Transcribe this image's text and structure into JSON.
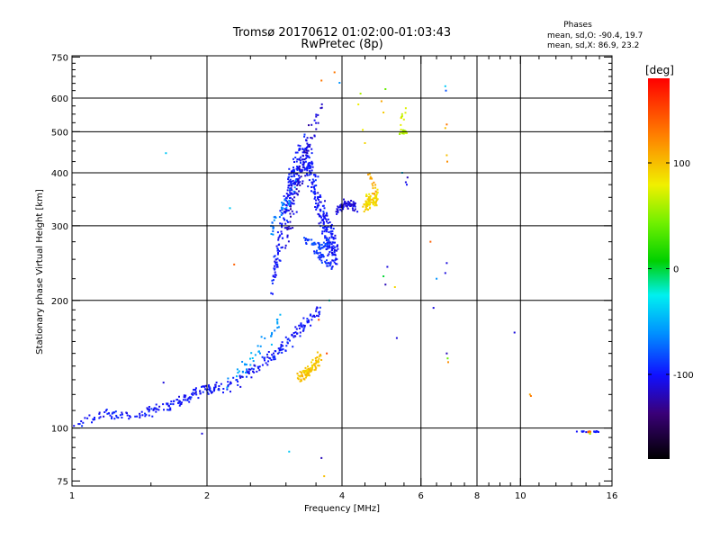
{
  "chart_data": {
    "type": "scatter",
    "title": "Tromsø 20170612 01:02:00-01:03:43",
    "subtitle": "RwPretec (8p)",
    "xlabel": "Frequency [MHz]",
    "ylabel": "Stationary phase Virtual Height [km]",
    "xscale": "log",
    "yscale": "log",
    "xlim": [
      1,
      16
    ],
    "ylim": [
      73,
      755
    ],
    "x_ticks": [
      1,
      2,
      4,
      6,
      8,
      10,
      16
    ],
    "x_tick_labels": [
      "1",
      "2",
      "4",
      "6",
      "8",
      "10",
      "16"
    ],
    "y_ticks": [
      75,
      100,
      200,
      300,
      400,
      500,
      600,
      750
    ],
    "y_tick_labels": [
      "75",
      "100",
      "200",
      "300",
      "400",
      "500",
      "600",
      "750"
    ],
    "x_grid": [
      2,
      4,
      6,
      8,
      10
    ],
    "y_grid": [
      100,
      200,
      300,
      400,
      500,
      600
    ],
    "grid": true,
    "phases_box": {
      "title": "Phases",
      "line1": "mean, sd,O: -90.4, 19.7",
      "line2": "mean, sd,X:  86.9, 23.2"
    },
    "colorbar": {
      "label": "[deg]",
      "range": [
        -180,
        180
      ],
      "ticks": [
        100,
        0,
        -100
      ],
      "tick_labels": [
        "100",
        "0",
        "-100"
      ]
    },
    "traces": [
      {
        "x": [
          1.0,
          1.1,
          1.2,
          1.3,
          1.4,
          1.5,
          1.6,
          1.7,
          1.8,
          1.9,
          2.0,
          2.1
        ],
        "y": [
          103,
          105,
          108,
          107,
          106,
          110,
          112,
          114,
          117,
          122,
          123,
          124
        ],
        "phase": -100,
        "spread": 0.04,
        "n": 170
      },
      {
        "x": [
          2.1,
          2.3,
          2.5,
          2.7,
          2.9,
          3.1,
          3.3,
          3.6
        ],
        "y": [
          124,
          128,
          135,
          143,
          152,
          165,
          175,
          195
        ],
        "phase": -100,
        "spread": 0.06,
        "n": 150
      },
      {
        "x": [
          2.2,
          2.45,
          2.7,
          2.9
        ],
        "y": [
          128,
          142,
          160,
          178
        ],
        "phase": -55,
        "spread": 0.07,
        "n": 40
      },
      {
        "x": [
          2.8,
          2.9,
          3.0,
          3.1,
          3.2,
          3.3,
          3.4,
          3.5,
          3.6,
          3.7,
          3.8,
          3.9
        ],
        "y": [
          225,
          270,
          330,
          380,
          420,
          440,
          410,
          360,
          320,
          290,
          270,
          260
        ],
        "phase": -100,
        "spread": 0.16,
        "n": 440
      },
      {
        "x": [
          3.0,
          3.2,
          3.4,
          3.6
        ],
        "y": [
          280,
          380,
          490,
          560
        ],
        "phase": -115,
        "spread": 0.12,
        "n": 80
      },
      {
        "x": [
          3.3,
          3.45,
          3.6,
          3.75
        ],
        "y": [
          278,
          272,
          268,
          276
        ],
        "phase": -85,
        "spread": 0.03,
        "n": 50
      },
      {
        "x": [
          3.5,
          3.6,
          3.7,
          3.8
        ],
        "y": [
          260,
          252,
          245,
          240
        ],
        "phase": -90,
        "spread": 0.04,
        "n": 35
      },
      {
        "x": [
          2.75,
          2.95,
          3.15
        ],
        "y": [
          290,
          330,
          370
        ],
        "phase": -65,
        "spread": 0.08,
        "n": 35
      },
      {
        "x": [
          3.9,
          4.0,
          4.1,
          4.2,
          4.3
        ],
        "y": [
          325,
          335,
          340,
          338,
          330
        ],
        "phase": -110,
        "spread": 0.04,
        "n": 70
      },
      {
        "x": [
          3.2,
          3.3,
          3.4,
          3.5,
          3.6
        ],
        "y": [
          132,
          133,
          138,
          142,
          147
        ],
        "phase": 98,
        "spread": 0.05,
        "n": 90
      },
      {
        "x": [
          4.5,
          4.6,
          4.7,
          4.8
        ],
        "y": [
          335,
          340,
          345,
          350
        ],
        "phase": 90,
        "spread": 0.06,
        "n": 90
      },
      {
        "x": [
          4.6,
          4.75
        ],
        "y": [
          390,
          360
        ],
        "phase": 110,
        "spread": 0.07,
        "n": 15
      },
      {
        "x": [
          5.4,
          5.5,
          5.55
        ],
        "y": [
          495,
          498,
          500
        ],
        "phase": 60,
        "spread": 0.015,
        "n": 28
      },
      {
        "x": [
          5.4,
          5.5
        ],
        "y": [
          530,
          550
        ],
        "phase": 75,
        "spread": 0.05,
        "n": 10
      },
      {
        "x": [
          13.4,
          14.0,
          14.6,
          15.0
        ],
        "y": [
          98,
          98,
          98,
          98
        ],
        "phase": -100,
        "spread": 0.006,
        "n": 18
      },
      {
        "x": [
          14.2,
          14.5
        ],
        "y": [
          98,
          98
        ],
        "phase": 140,
        "spread": 0.005,
        "n": 6
      },
      {
        "x": [
          14.3
        ],
        "y": [
          97
        ],
        "phase": 60,
        "spread": 0.005,
        "n": 3
      }
    ],
    "points": [
      {
        "x": 1.6,
        "y": 128,
        "phase": -110
      },
      {
        "x": 1.62,
        "y": 445,
        "phase": -40
      },
      {
        "x": 1.95,
        "y": 97,
        "phase": -110
      },
      {
        "x": 2.25,
        "y": 330,
        "phase": -40
      },
      {
        "x": 2.3,
        "y": 243,
        "phase": 140
      },
      {
        "x": 3.05,
        "y": 88,
        "phase": -40
      },
      {
        "x": 3.6,
        "y": 85,
        "phase": -120
      },
      {
        "x": 3.65,
        "y": 77,
        "phase": 100
      },
      {
        "x": 3.55,
        "y": 180,
        "phase": 150
      },
      {
        "x": 3.7,
        "y": 150,
        "phase": 150
      },
      {
        "x": 3.75,
        "y": 200,
        "phase": -20
      },
      {
        "x": 3.95,
        "y": 652,
        "phase": -60
      },
      {
        "x": 3.85,
        "y": 690,
        "phase": 130
      },
      {
        "x": 3.6,
        "y": 660,
        "phase": 130
      },
      {
        "x": 4.35,
        "y": 580,
        "phase": 80
      },
      {
        "x": 4.4,
        "y": 615,
        "phase": 60
      },
      {
        "x": 4.45,
        "y": 505,
        "phase": 80
      },
      {
        "x": 4.5,
        "y": 470,
        "phase": 90
      },
      {
        "x": 4.9,
        "y": 590,
        "phase": 110
      },
      {
        "x": 5.0,
        "y": 630,
        "phase": 40
      },
      {
        "x": 4.95,
        "y": 555,
        "phase": 95
      },
      {
        "x": 5.05,
        "y": 240,
        "phase": -110
      },
      {
        "x": 5.0,
        "y": 218,
        "phase": -120
      },
      {
        "x": 4.95,
        "y": 228,
        "phase": 0
      },
      {
        "x": 5.25,
        "y": 215,
        "phase": 90
      },
      {
        "x": 5.3,
        "y": 163,
        "phase": -110
      },
      {
        "x": 5.55,
        "y": 380,
        "phase": -110
      },
      {
        "x": 5.6,
        "y": 390,
        "phase": -120
      },
      {
        "x": 5.58,
        "y": 375,
        "phase": -100
      },
      {
        "x": 5.45,
        "y": 400,
        "phase": -40
      },
      {
        "x": 6.3,
        "y": 275,
        "phase": 140
      },
      {
        "x": 6.4,
        "y": 192,
        "phase": -110
      },
      {
        "x": 6.5,
        "y": 225,
        "phase": -60
      },
      {
        "x": 6.8,
        "y": 640,
        "phase": -40
      },
      {
        "x": 6.82,
        "y": 625,
        "phase": -80
      },
      {
        "x": 6.85,
        "y": 520,
        "phase": 130
      },
      {
        "x": 6.8,
        "y": 510,
        "phase": 100
      },
      {
        "x": 6.85,
        "y": 440,
        "phase": 100
      },
      {
        "x": 6.87,
        "y": 425,
        "phase": 120
      },
      {
        "x": 6.85,
        "y": 245,
        "phase": -110
      },
      {
        "x": 6.8,
        "y": 232,
        "phase": -110
      },
      {
        "x": 6.85,
        "y": 150,
        "phase": -120
      },
      {
        "x": 6.9,
        "y": 143,
        "phase": 120
      },
      {
        "x": 6.88,
        "y": 146,
        "phase": 40
      },
      {
        "x": 9.7,
        "y": 168,
        "phase": -110
      },
      {
        "x": 10.5,
        "y": 120,
        "phase": 110
      },
      {
        "x": 10.55,
        "y": 119,
        "phase": 130
      }
    ]
  }
}
